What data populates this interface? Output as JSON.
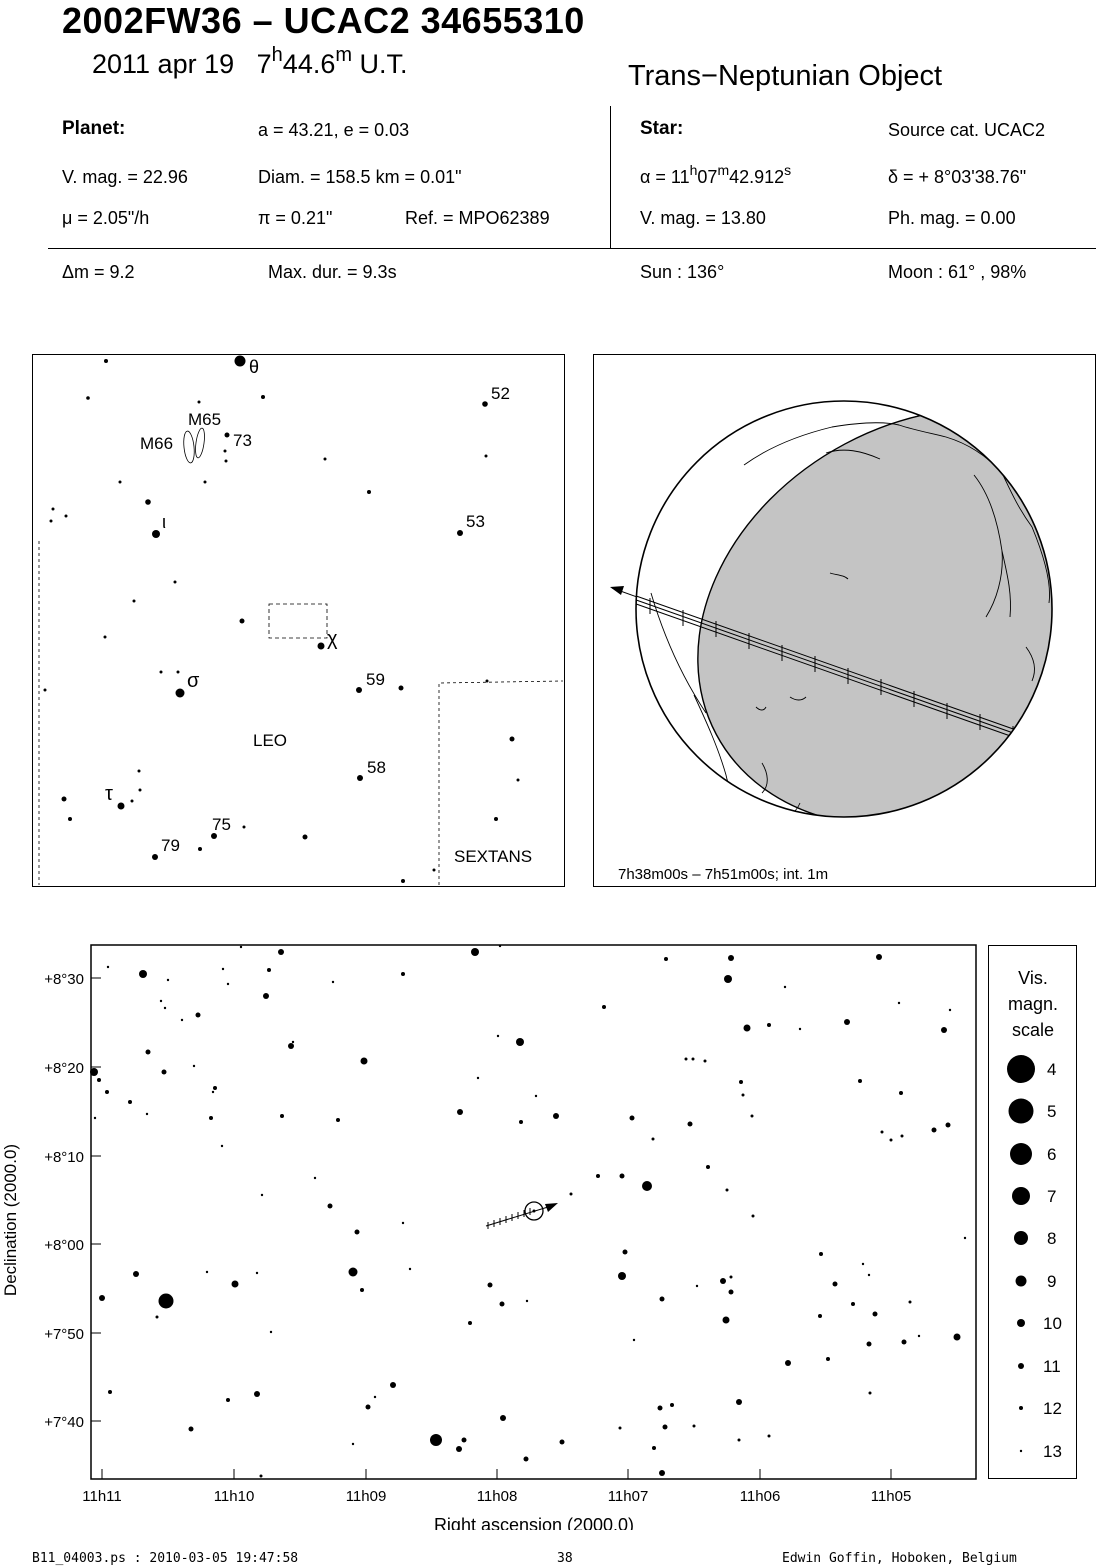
{
  "header": {
    "title": "2002FW36  –  UCAC2 34655310",
    "date": "2011 apr 19",
    "time_h": "7",
    "time_h_sup": "h",
    "time_m": "44.6",
    "time_m_sup": "m",
    "time_suffix": " U.T.",
    "object_type": "Trans−Neptunian Object"
  },
  "planet": {
    "heading": "Planet:",
    "orbit": "a = 43.21, e = 0.03",
    "vmag": "V. mag. = 22.96",
    "diam": "Diam. = 158.5 km = 0.01\"",
    "mu": "μ =  2.05\"/h",
    "pi": "π =  0.21\"",
    "ref": "Ref. = MPO62389"
  },
  "star": {
    "heading": "Star:",
    "source": "Source cat.  UCAC2",
    "ra_pre": "α = 11",
    "ra_h": "h",
    "ra_mid": "07",
    "ra_m": "m",
    "ra_sec": "42.912",
    "ra_s": "s",
    "dec": "δ = + 8°03'38.76\"",
    "vmag": "V. mag. = 13.80",
    "phmag": "Ph. mag. =  0.00"
  },
  "event": {
    "dm": "Δm = 9.2",
    "maxdur": "Max. dur. = 9.3s",
    "sun": "Sun : 136°",
    "moon": "Moon :  61° , 98%"
  },
  "finder_chart": {
    "constellation_main": "LEO",
    "constellation_other": "SEXTANS",
    "labels": [
      {
        "id": "theta",
        "text": "θ"
      },
      {
        "id": "52",
        "text": "52"
      },
      {
        "id": "M65",
        "text": "M65"
      },
      {
        "id": "M66",
        "text": "M66"
      },
      {
        "id": "73",
        "text": "73"
      },
      {
        "id": "iota",
        "text": "ι"
      },
      {
        "id": "53",
        "text": "53"
      },
      {
        "id": "chi",
        "text": "χ"
      },
      {
        "id": "sigma",
        "text": "σ"
      },
      {
        "id": "59",
        "text": "59"
      },
      {
        "id": "58",
        "text": "58"
      },
      {
        "id": "tau",
        "text": "τ"
      },
      {
        "id": "75",
        "text": "75"
      },
      {
        "id": "79",
        "text": "79"
      }
    ]
  },
  "globe": {
    "time_range": "7h38m00s –  7h51m00s; int.  1m"
  },
  "star_chart": {
    "x_label": "Right ascension (2000.0)",
    "y_label": "Declination (2000.0)",
    "x_ticks": [
      "11h11",
      "11h10",
      "11h09",
      "11h08",
      "11h07",
      "11h06",
      "11h05"
    ],
    "y_ticks": [
      "+8°30",
      "+8°20",
      "+8°10",
      "+8°00",
      "+7°50",
      "+7°40"
    ]
  },
  "magnitude_scale": {
    "title_1": "Vis.",
    "title_2": "magn.",
    "title_3": "scale",
    "items": [
      "4",
      "5",
      "6",
      "7",
      "8",
      "9",
      "10",
      "11",
      "12",
      "13"
    ]
  },
  "footer": {
    "left": "B11_04003.ps : 2010-03-05 19:47:58",
    "center": "38",
    "right": "Edwin Goffin, Hoboken, Belgium"
  }
}
